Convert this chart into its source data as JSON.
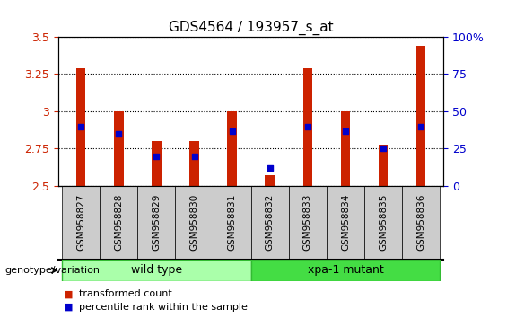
{
  "title": "GDS4564 / 193957_s_at",
  "samples": [
    "GSM958827",
    "GSM958828",
    "GSM958829",
    "GSM958830",
    "GSM958831",
    "GSM958832",
    "GSM958833",
    "GSM958834",
    "GSM958835",
    "GSM958836"
  ],
  "transformed_count": [
    3.29,
    3.0,
    2.8,
    2.8,
    3.0,
    2.57,
    3.29,
    3.0,
    2.78,
    3.44
  ],
  "percentile_rank": [
    40,
    35,
    20,
    20,
    37,
    12,
    40,
    37,
    25,
    40
  ],
  "ylim_left": [
    2.5,
    3.5
  ],
  "ylim_right": [
    0,
    100
  ],
  "yticks_left": [
    2.5,
    2.75,
    3.0,
    3.25,
    3.5
  ],
  "yticks_right": [
    0,
    25,
    50,
    75,
    100
  ],
  "ytick_labels_left": [
    "2.5",
    "2.75",
    "3",
    "3.25",
    "3.5"
  ],
  "ytick_labels_right": [
    "0",
    "25",
    "50",
    "75",
    "100%"
  ],
  "bar_color": "#cc2200",
  "dot_color": "#0000cc",
  "bg_plot": "#ffffff",
  "bg_xtick": "#cccccc",
  "group_wild": {
    "label": "wild type",
    "color": "#aaffaa",
    "border": "#33bb33"
  },
  "group_mutant": {
    "label": "xpa-1 mutant",
    "color": "#44dd44",
    "border": "#33bb33"
  },
  "genotype_label": "genotype/variation",
  "legend_red": "transformed count",
  "legend_blue": "percentile rank within the sample",
  "bar_width": 0.25,
  "dot_size": 25,
  "fig_width": 5.65,
  "fig_height": 3.54,
  "dpi": 100
}
